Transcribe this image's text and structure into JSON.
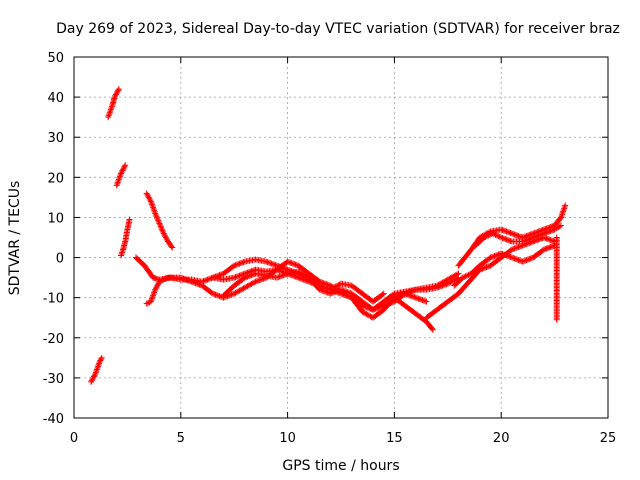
{
  "chart_data": {
    "type": "scatter",
    "title": "Day 269 of 2023, Sidereal Day-to-day VTEC variation (SDTVAR) for receiver braz",
    "xlabel": "GPS time / hours",
    "ylabel": "SDTVAR / TECUs",
    "xlim": [
      0,
      25
    ],
    "ylim": [
      -40,
      50
    ],
    "xticks": [
      0,
      5,
      10,
      15,
      20,
      25
    ],
    "yticks": [
      -40,
      -30,
      -20,
      -10,
      0,
      10,
      20,
      30,
      40,
      50
    ],
    "xtick_labels": [
      "0",
      "5",
      "10",
      "15",
      "20",
      "25"
    ],
    "ytick_labels": [
      "-40",
      "-30",
      "-20",
      "-10",
      "0",
      "10",
      "20",
      "30",
      "40",
      "50"
    ],
    "grid": true,
    "marker": "+",
    "color": "#ff0000",
    "series": [
      {
        "name": "arc-1",
        "points": [
          [
            0.8,
            -31
          ],
          [
            0.9,
            -30
          ],
          [
            1.0,
            -29
          ],
          [
            1.1,
            -27.5
          ],
          [
            1.2,
            -26
          ],
          [
            1.3,
            -25
          ]
        ]
      },
      {
        "name": "arc-2",
        "points": [
          [
            1.6,
            35
          ],
          [
            1.7,
            36.5
          ],
          [
            1.8,
            38
          ],
          [
            1.9,
            40
          ],
          [
            2.0,
            41
          ],
          [
            2.1,
            42
          ]
        ]
      },
      {
        "name": "arc-3",
        "points": [
          [
            2.0,
            18
          ],
          [
            2.1,
            19.5
          ],
          [
            2.2,
            21
          ],
          [
            2.3,
            22
          ],
          [
            2.4,
            23
          ]
        ]
      },
      {
        "name": "arc-4",
        "points": [
          [
            2.2,
            0.5
          ],
          [
            2.3,
            2
          ],
          [
            2.4,
            4
          ],
          [
            2.5,
            7
          ],
          [
            2.6,
            9.5
          ]
        ]
      },
      {
        "name": "arc-5",
        "points": [
          [
            2.9,
            0
          ],
          [
            3.1,
            -1
          ],
          [
            3.3,
            -2
          ],
          [
            3.5,
            -3.5
          ],
          [
            3.7,
            -5
          ],
          [
            4.0,
            -5.5
          ],
          [
            4.5,
            -5
          ],
          [
            5.0,
            -5.5
          ],
          [
            5.5,
            -5.5
          ],
          [
            6.0,
            -6
          ],
          [
            6.5,
            -5
          ],
          [
            7.0,
            -5.5
          ],
          [
            7.5,
            -5
          ],
          [
            8.0,
            -4
          ],
          [
            8.5,
            -3
          ],
          [
            9.0,
            -3.5
          ],
          [
            9.5,
            -3
          ],
          [
            10.0,
            -4
          ],
          [
            10.5,
            -5
          ],
          [
            11.0,
            -6
          ],
          [
            11.5,
            -7
          ],
          [
            12.0,
            -8
          ],
          [
            12.5,
            -9
          ],
          [
            13.0,
            -10
          ],
          [
            13.5,
            -12
          ],
          [
            14.0,
            -13
          ],
          [
            14.5,
            -11
          ],
          [
            15.0,
            -9
          ],
          [
            15.5,
            -8.5
          ],
          [
            16.0,
            -8
          ],
          [
            16.5,
            -8
          ],
          [
            17.0,
            -7.5
          ],
          [
            17.5,
            -6.5
          ],
          [
            18.0,
            -5
          ]
        ]
      },
      {
        "name": "arc-6",
        "points": [
          [
            3.4,
            16
          ],
          [
            3.6,
            14
          ],
          [
            3.8,
            11
          ],
          [
            4.0,
            8.5
          ],
          [
            4.2,
            6
          ],
          [
            4.4,
            4
          ],
          [
            4.6,
            2.5
          ]
        ]
      },
      {
        "name": "arc-7",
        "points": [
          [
            3.4,
            -11.5
          ],
          [
            3.6,
            -11
          ],
          [
            3.8,
            -8
          ],
          [
            4.0,
            -6
          ],
          [
            4.4,
            -5
          ],
          [
            5.0,
            -5
          ],
          [
            5.5,
            -6
          ],
          [
            6.0,
            -7
          ],
          [
            6.5,
            -9
          ],
          [
            7.0,
            -10
          ],
          [
            7.5,
            -9
          ],
          [
            8.0,
            -7.5
          ],
          [
            8.5,
            -6
          ],
          [
            9.0,
            -5
          ],
          [
            9.5,
            -3
          ],
          [
            10.0,
            -1
          ],
          [
            10.5,
            -2
          ],
          [
            11.0,
            -4
          ],
          [
            11.5,
            -6
          ],
          [
            12.0,
            -7
          ],
          [
            12.5,
            -8.5
          ],
          [
            13.0,
            -10
          ],
          [
            13.5,
            -13.5
          ],
          [
            14.0,
            -15
          ],
          [
            14.5,
            -13
          ],
          [
            15.0,
            -10
          ],
          [
            15.5,
            -9
          ],
          [
            16.0,
            -8
          ],
          [
            16.5,
            -7.5
          ],
          [
            17.0,
            -7
          ],
          [
            17.5,
            -5.5
          ],
          [
            18.0,
            -4
          ]
        ]
      },
      {
        "name": "arc-8",
        "points": [
          [
            6.5,
            -5
          ],
          [
            7.0,
            -4
          ],
          [
            7.5,
            -2
          ],
          [
            8.0,
            -1
          ],
          [
            8.5,
            -0.5
          ],
          [
            9.0,
            -1
          ],
          [
            9.5,
            -2
          ],
          [
            10.0,
            -3
          ],
          [
            10.5,
            -4
          ],
          [
            11.0,
            -5.5
          ],
          [
            11.5,
            -7
          ],
          [
            12.0,
            -8
          ],
          [
            12.5,
            -6.5
          ],
          [
            13.0,
            -7
          ],
          [
            13.5,
            -9
          ],
          [
            14.0,
            -11
          ],
          [
            14.5,
            -9
          ]
        ]
      },
      {
        "name": "arc-9",
        "points": [
          [
            7.0,
            -9.5
          ],
          [
            7.5,
            -7
          ],
          [
            8.0,
            -5
          ],
          [
            8.5,
            -4
          ],
          [
            9.0,
            -4.5
          ],
          [
            9.5,
            -5
          ],
          [
            10.0,
            -4
          ],
          [
            10.5,
            -3.5
          ],
          [
            11.0,
            -5
          ],
          [
            11.5,
            -8
          ],
          [
            12.0,
            -9
          ],
          [
            12.5,
            -8
          ],
          [
            13.0,
            -9
          ],
          [
            13.5,
            -11
          ],
          [
            14.0,
            -13
          ],
          [
            14.5,
            -12
          ],
          [
            15.0,
            -11
          ],
          [
            15.5,
            -9
          ],
          [
            16.0,
            -10
          ],
          [
            16.5,
            -11
          ]
        ]
      },
      {
        "name": "arc-10",
        "points": [
          [
            15.0,
            -10
          ],
          [
            15.5,
            -12
          ],
          [
            16.0,
            -14
          ],
          [
            16.5,
            -16
          ],
          [
            16.8,
            -18
          ]
        ]
      },
      {
        "name": "arc-11",
        "points": [
          [
            16.5,
            -15
          ],
          [
            17.0,
            -13
          ],
          [
            17.5,
            -11
          ],
          [
            18.0,
            -9
          ],
          [
            18.5,
            -6
          ],
          [
            19.0,
            -3
          ],
          [
            19.5,
            -2
          ],
          [
            20.0,
            0
          ],
          [
            20.5,
            2
          ],
          [
            21.0,
            3
          ],
          [
            21.5,
            4
          ],
          [
            22.0,
            5
          ],
          [
            22.5,
            4
          ]
        ]
      },
      {
        "name": "arc-12",
        "points": [
          [
            17.8,
            -7
          ],
          [
            18.2,
            -5
          ],
          [
            18.6,
            -4
          ],
          [
            19.0,
            -2
          ],
          [
            19.5,
            0
          ],
          [
            20.0,
            1
          ],
          [
            20.5,
            0
          ],
          [
            21.0,
            -1
          ],
          [
            21.5,
            0
          ],
          [
            22.0,
            2
          ],
          [
            22.5,
            3
          ]
        ]
      },
      {
        "name": "arc-13",
        "points": [
          [
            18.0,
            -2
          ],
          [
            18.3,
            0
          ],
          [
            18.6,
            2
          ],
          [
            19.0,
            5
          ],
          [
            19.5,
            6.5
          ],
          [
            20.0,
            7
          ],
          [
            20.5,
            6
          ],
          [
            21.0,
            5
          ],
          [
            21.5,
            6
          ],
          [
            22.0,
            7
          ],
          [
            22.5,
            8
          ],
          [
            22.8,
            10
          ],
          [
            23.0,
            13
          ]
        ]
      },
      {
        "name": "arc-14",
        "points": [
          [
            18.8,
            3
          ],
          [
            19.2,
            5
          ],
          [
            19.6,
            6
          ],
          [
            20.0,
            5
          ],
          [
            20.5,
            4
          ],
          [
            21.0,
            4
          ],
          [
            21.5,
            5
          ],
          [
            22.0,
            6
          ],
          [
            22.5,
            7
          ],
          [
            22.8,
            8
          ]
        ]
      },
      {
        "name": "arc-15",
        "points": [
          [
            22.6,
            5
          ],
          [
            22.6,
            2.5
          ],
          [
            22.6,
            0
          ],
          [
            22.6,
            -2.5
          ],
          [
            22.6,
            -5
          ],
          [
            22.6,
            -7.5
          ],
          [
            22.6,
            -10
          ],
          [
            22.6,
            -12.5
          ],
          [
            22.6,
            -15.5
          ]
        ]
      }
    ]
  }
}
